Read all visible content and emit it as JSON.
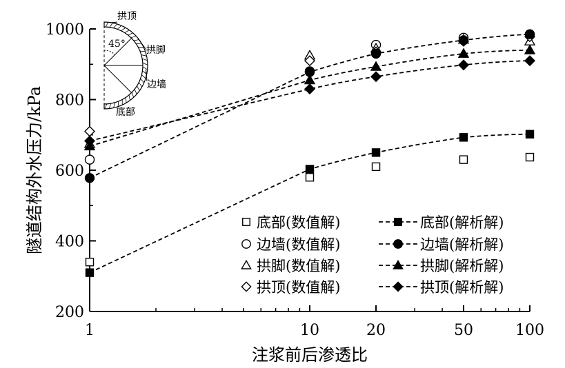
{
  "chart_data": {
    "type": "line",
    "xlabel": "注浆前后渗透比",
    "ylabel": "隧道结构外水压力/kPa",
    "xscale": "log",
    "xlim": [
      1,
      100
    ],
    "ylim": [
      200,
      1000
    ],
    "x": [
      1,
      10,
      20,
      50,
      100
    ],
    "xticks": [
      "1",
      "10",
      "20",
      "50",
      "100"
    ],
    "yticks": [
      "200",
      "400",
      "600",
      "800",
      "1000"
    ],
    "grid": false,
    "legend_position": "bottom-right",
    "series": [
      {
        "name": "底部(数值解)",
        "marker": "open-square",
        "line": "none",
        "values": [
          340,
          580,
          610,
          630,
          637
        ]
      },
      {
        "name": "边墙(数值解)",
        "marker": "open-circle",
        "line": "none",
        "values": [
          630,
          880,
          955,
          975,
          985
        ]
      },
      {
        "name": "拱脚(数值解)",
        "marker": "open-triangle",
        "line": "none",
        "values": [
          675,
          925,
          945,
          970,
          965
        ]
      },
      {
        "name": "拱顶(数值解)",
        "marker": "open-diamond",
        "line": "none",
        "values": [
          710,
          910,
          935,
          965,
          978
        ]
      },
      {
        "name": "底部(解析解)",
        "marker": "filled-square",
        "line": "dashed",
        "values": [
          310,
          603,
          650,
          693,
          702
        ]
      },
      {
        "name": "边墙(解析解)",
        "marker": "filled-circle",
        "line": "dashed",
        "values": [
          578,
          878,
          930,
          968,
          985
        ]
      },
      {
        "name": "拱脚(解析解)",
        "marker": "filled-triangle",
        "line": "dashed",
        "values": [
          668,
          855,
          893,
          930,
          940
        ]
      },
      {
        "name": "拱顶(解析解)",
        "marker": "filled-diamond",
        "line": "dashed",
        "values": [
          683,
          830,
          865,
          898,
          910
        ]
      }
    ],
    "legend_rows": [
      [
        "底部(数值解)",
        "底部(解析解)"
      ],
      [
        "边墙(数值解)",
        "边墙(解析解)"
      ],
      [
        "拱脚(数值解)",
        "拱脚(解析解)"
      ],
      [
        "拱顶(数值解)",
        "拱顶(解析解)"
      ]
    ],
    "inset": {
      "labels": [
        "拱顶",
        "拱脚",
        "边墙",
        "底部"
      ],
      "angle_label": "45°"
    }
  }
}
